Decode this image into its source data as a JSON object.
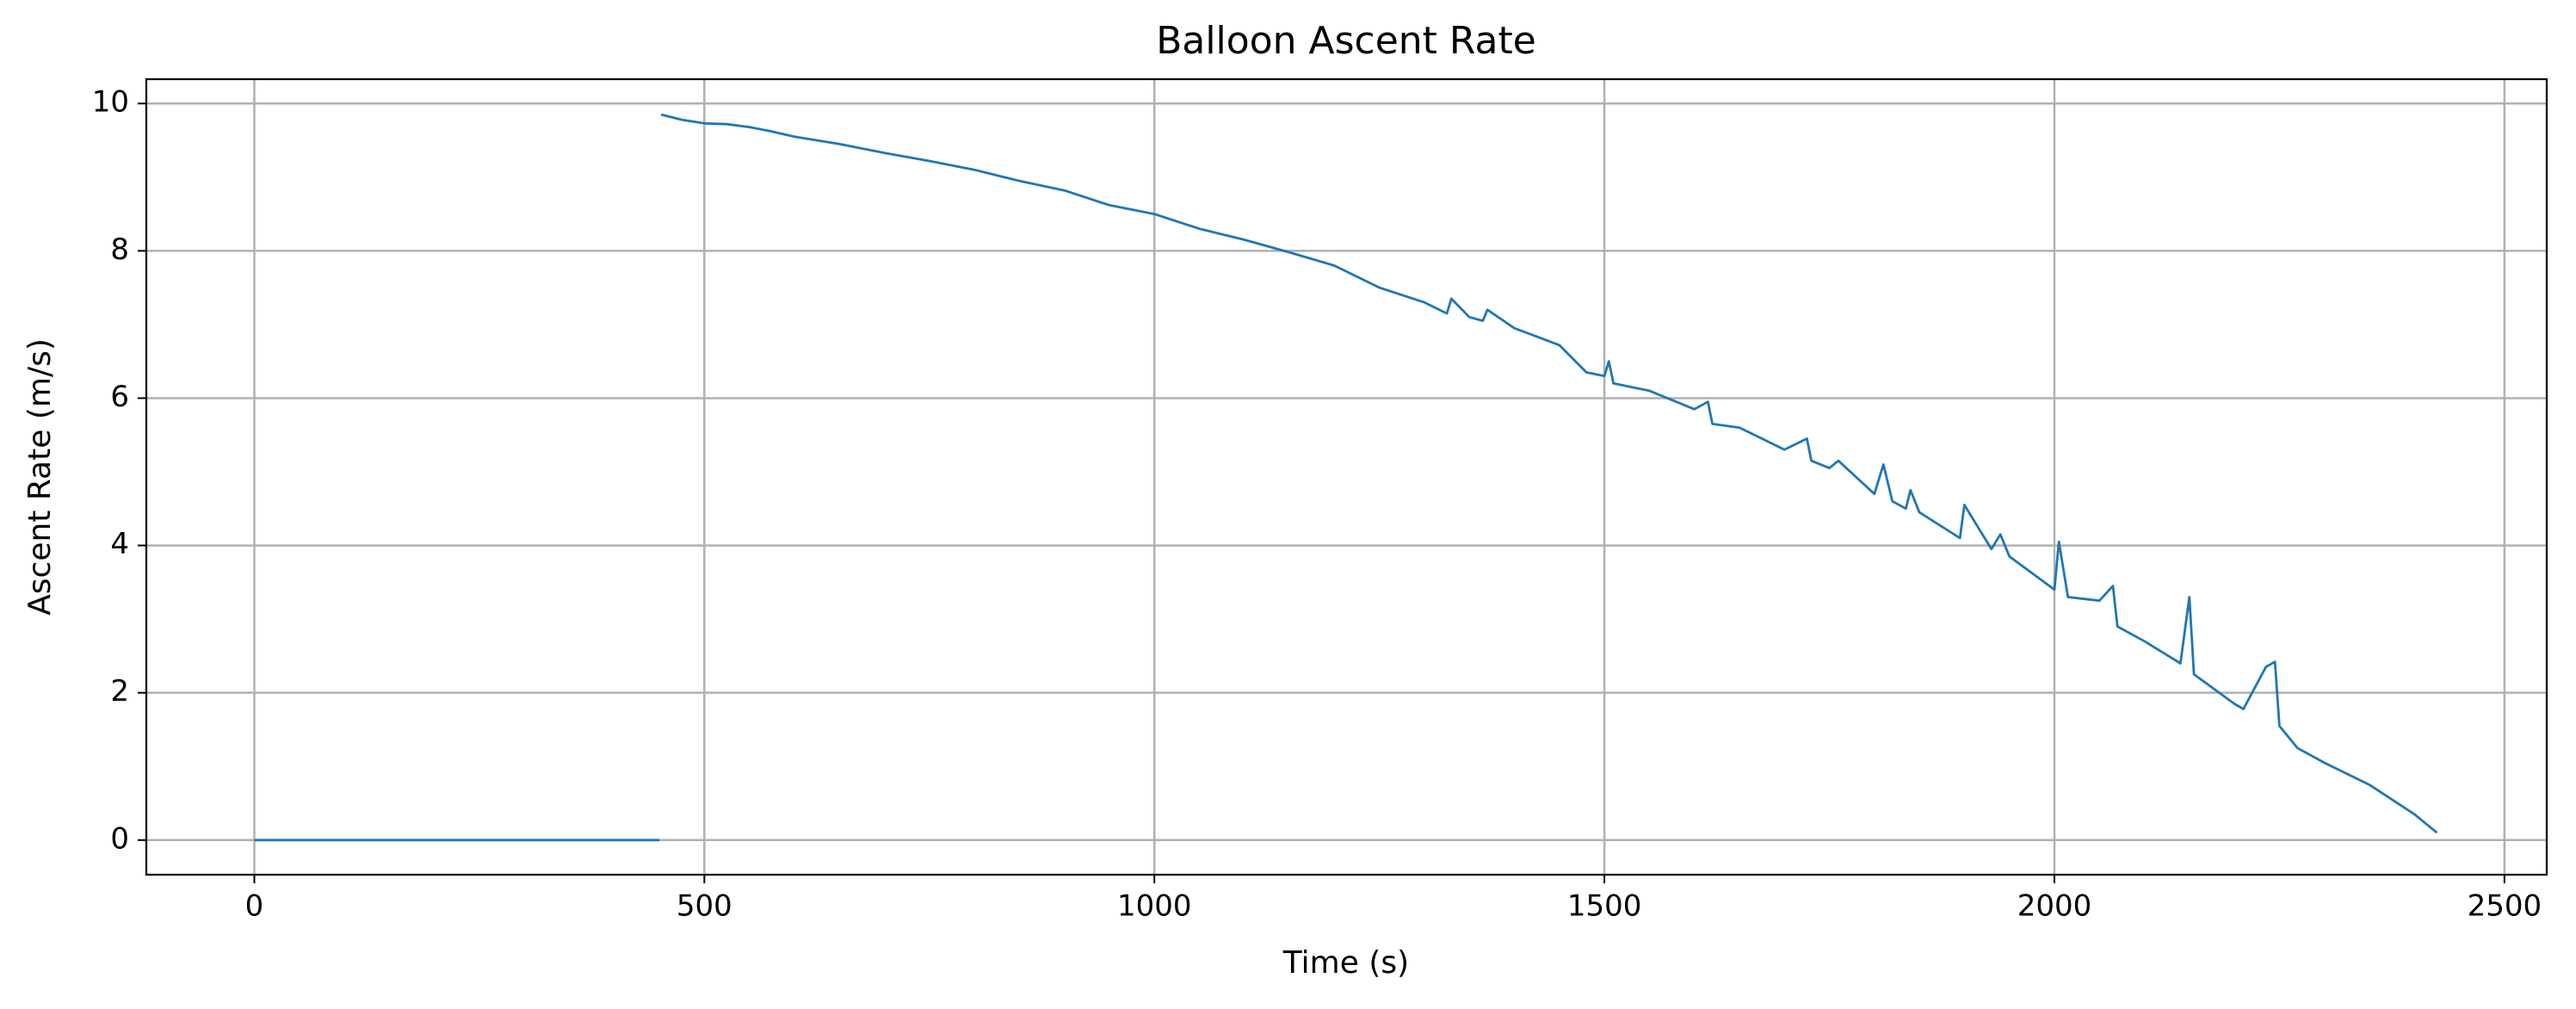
{
  "chart_data": {
    "type": "line",
    "title": "Balloon Ascent Rate",
    "x_label": "Time (s)",
    "y_label": "Ascent Rate (m/s)",
    "color": "#1f77b4",
    "grid": true,
    "xlim": [
      -120,
      2547
    ],
    "ylim": [
      -0.47,
      10.33
    ],
    "xticks": [
      0,
      500,
      1000,
      1500,
      2000,
      2500
    ],
    "yticks": [
      0,
      2,
      4,
      6,
      8,
      10
    ],
    "x": [
      0,
      450,
      451,
      452,
      475,
      500,
      525,
      550,
      575,
      600,
      650,
      700,
      750,
      800,
      850,
      900,
      950,
      1000,
      1050,
      1100,
      1150,
      1200,
      1250,
      1300,
      1325,
      1330,
      1350,
      1365,
      1370,
      1400,
      1450,
      1480,
      1500,
      1505,
      1510,
      1550,
      1600,
      1615,
      1620,
      1650,
      1700,
      1725,
      1730,
      1750,
      1760,
      1800,
      1810,
      1820,
      1835,
      1840,
      1850,
      1895,
      1900,
      1930,
      1940,
      1950,
      2000,
      2005,
      2015,
      2050,
      2065,
      2070,
      2100,
      2140,
      2150,
      2155,
      2200,
      2210,
      2235,
      2245,
      2250,
      2270,
      2300,
      2350,
      2400,
      2425
    ],
    "values": [
      0,
      0,
      null,
      9.85,
      9.78,
      9.73,
      9.72,
      9.68,
      9.62,
      9.55,
      9.45,
      9.33,
      9.22,
      9.1,
      8.95,
      8.82,
      8.62,
      8.5,
      8.3,
      8.15,
      7.98,
      7.8,
      7.5,
      7.3,
      7.15,
      7.35,
      7.1,
      7.05,
      7.2,
      6.95,
      6.72,
      6.35,
      6.3,
      6.5,
      6.2,
      6.1,
      5.85,
      5.95,
      5.65,
      5.6,
      5.3,
      5.45,
      5.15,
      5.05,
      5.15,
      4.7,
      5.1,
      4.6,
      4.5,
      4.75,
      4.45,
      4.1,
      4.55,
      3.95,
      4.15,
      3.85,
      3.4,
      4.05,
      3.3,
      3.25,
      3.45,
      2.9,
      2.7,
      2.4,
      3.3,
      2.25,
      1.85,
      1.78,
      2.35,
      2.42,
      1.55,
      1.25,
      1.05,
      0.75,
      0.35,
      0.1
    ]
  }
}
